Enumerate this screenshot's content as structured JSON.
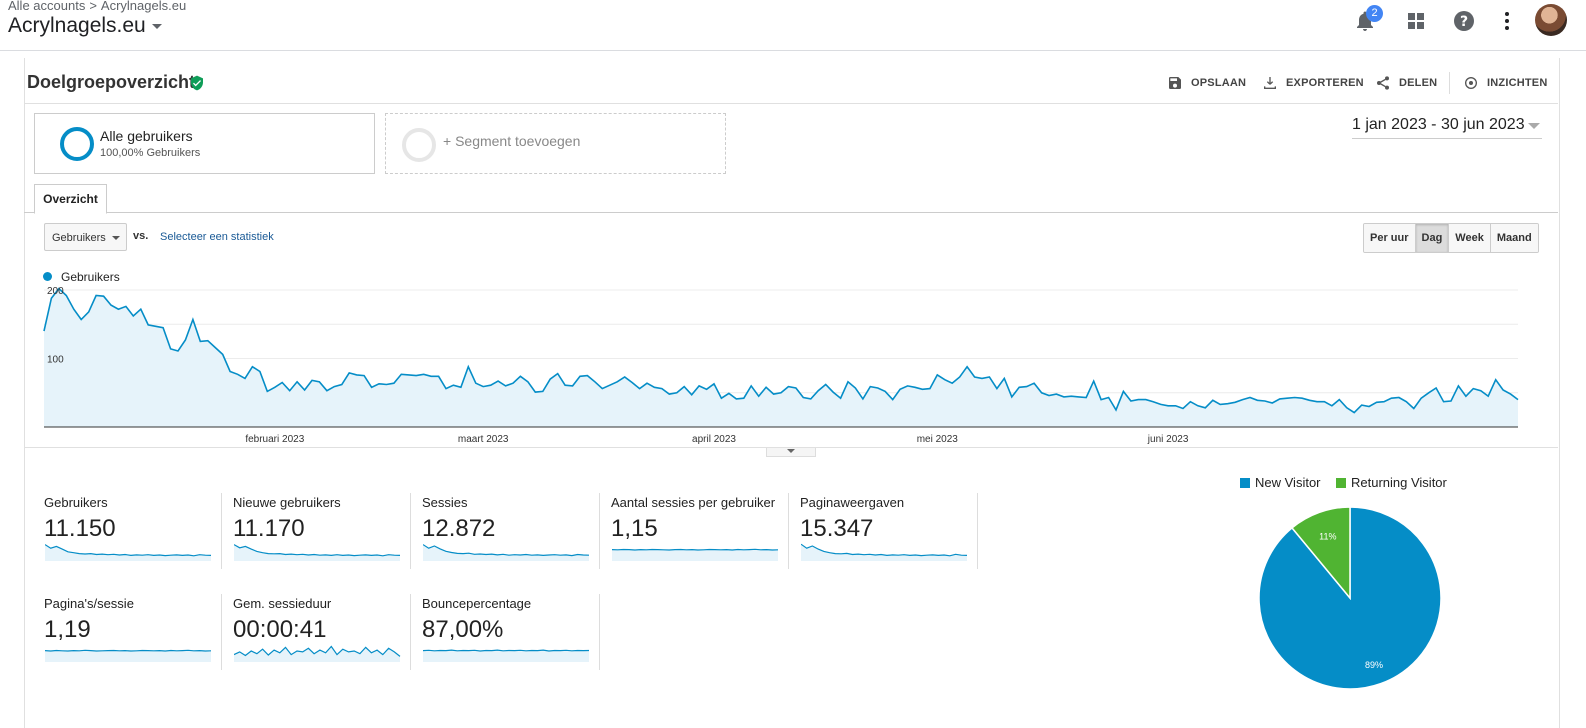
{
  "header": {
    "breadcrumb": [
      "Alle accounts",
      "Acrylnagels.eu"
    ],
    "account": "Acrylnagels.eu",
    "notifications": "2"
  },
  "page": {
    "title": "Doelgroepoverzicht",
    "actions": [
      "OPSLAAN",
      "EXPORTEREN",
      "DELEN",
      "INZICHTEN"
    ]
  },
  "segments": {
    "active": {
      "name": "Alle gebruikers",
      "sub": "100,00% Gebruikers"
    },
    "add": "+ Segment toevoegen"
  },
  "date_range": "1 jan 2023 - 30 jun 2023",
  "tabs": [
    "Overzicht"
  ],
  "controls": {
    "metric": "Gebruikers",
    "vs": "vs.",
    "select_stat": "Selecteer een statistiek",
    "granularity": [
      "Per uur",
      "Dag",
      "Week",
      "Maand"
    ],
    "active_granularity": "Dag"
  },
  "colors": {
    "series": "#058dc7",
    "series_fill": "#e6f3fa",
    "returning": "#50b432",
    "link": "#1a5a96"
  },
  "chart_data": [
    {
      "type": "area",
      "series": [
        {
          "name": "Gebruikers",
          "values": [
            140,
            188,
            202,
            192,
            172,
            157,
            168,
            192,
            191,
            178,
            172,
            176,
            162,
            172,
            149,
            147,
            145,
            114,
            111,
            127,
            157,
            125,
            126,
            116,
            106,
            81,
            77,
            71,
            88,
            81,
            52,
            58,
            65,
            53,
            66,
            54,
            68,
            66,
            53,
            59,
            62,
            79,
            76,
            75,
            58,
            63,
            62,
            64,
            77,
            76,
            75,
            77,
            74,
            74,
            56,
            61,
            58,
            88,
            64,
            59,
            61,
            67,
            60,
            64,
            74,
            66,
            51,
            52,
            70,
            78,
            61,
            60,
            74,
            75,
            66,
            56,
            61,
            66,
            73,
            65,
            56,
            64,
            58,
            56,
            48,
            50,
            59,
            47,
            60,
            55,
            63,
            42,
            49,
            41,
            42,
            60,
            45,
            58,
            48,
            50,
            59,
            57,
            43,
            41,
            53,
            62,
            51,
            42,
            66,
            57,
            41,
            59,
            57,
            52,
            40,
            55,
            60,
            58,
            55,
            56,
            76,
            69,
            64,
            73,
            88,
            73,
            71,
            73,
            56,
            71,
            44,
            58,
            59,
            64,
            50,
            46,
            48,
            44,
            45,
            44,
            43,
            67,
            40,
            43,
            25,
            52,
            38,
            40,
            40,
            37,
            33,
            31,
            31,
            27,
            37,
            31,
            28,
            39,
            33,
            34,
            36,
            40,
            43,
            39,
            38,
            35,
            41,
            42,
            43,
            42,
            39,
            37,
            37,
            31,
            40,
            28,
            21,
            32,
            30,
            36,
            37,
            42,
            43,
            37,
            27,
            42,
            50,
            57,
            37,
            38,
            60,
            45,
            56,
            53,
            45,
            69,
            54,
            48,
            40
          ]
        }
      ],
      "xlabels": [
        "februari 2023",
        "maart 2023",
        "april 2023",
        "mei 2023",
        "juni 2023"
      ],
      "ytick_labels": [
        "200",
        "100"
      ],
      "ylim": [
        0,
        200
      ]
    },
    {
      "type": "pie",
      "series": [
        {
          "name": "New Visitor",
          "value": 89,
          "label": "89%",
          "color": "#058dc7"
        },
        {
          "name": "Returning Visitor",
          "value": 11,
          "label": "11%",
          "color": "#50b432"
        }
      ]
    }
  ],
  "scorecards": [
    {
      "name": "Gebruikers",
      "value": "11.150",
      "spark": [
        80,
        60,
        70,
        55,
        40,
        35,
        30,
        28,
        30,
        25,
        27,
        24,
        26,
        22,
        25,
        20,
        23,
        21,
        24,
        20,
        22,
        19,
        21,
        23,
        20,
        22,
        18,
        24,
        21,
        20
      ]
    },
    {
      "name": "Nieuwe gebruikers",
      "value": "11.170",
      "spark": [
        80,
        62,
        70,
        55,
        42,
        35,
        30,
        29,
        30,
        25,
        27,
        24,
        26,
        22,
        25,
        21,
        23,
        20,
        24,
        20,
        22,
        19,
        21,
        23,
        20,
        22,
        18,
        24,
        21,
        20
      ]
    },
    {
      "name": "Sessies",
      "value": "12.872",
      "spark": [
        80,
        60,
        72,
        56,
        43,
        36,
        31,
        30,
        32,
        26,
        28,
        25,
        27,
        23,
        26,
        21,
        24,
        22,
        25,
        21,
        23,
        20,
        22,
        24,
        21,
        23,
        19,
        25,
        22,
        21
      ]
    },
    {
      "name": "Aantal sessies per gebruiker",
      "value": "1,15",
      "spark": [
        52,
        51,
        53,
        52,
        50,
        52,
        51,
        53,
        52,
        51,
        50,
        52,
        53,
        51,
        52,
        50,
        51,
        53,
        52,
        51,
        52,
        50,
        53,
        51,
        52,
        54,
        51,
        52,
        50,
        51
      ]
    },
    {
      "name": "Paginaweergaven",
      "value": "15.347",
      "spark": [
        82,
        60,
        72,
        55,
        42,
        35,
        30,
        29,
        31,
        25,
        27,
        24,
        26,
        22,
        25,
        20,
        23,
        21,
        24,
        20,
        22,
        19,
        21,
        23,
        20,
        22,
        18,
        26,
        21,
        20
      ]
    },
    {
      "name": "Pagina's/sessie",
      "value": "1,19",
      "spark": [
        52,
        50,
        53,
        51,
        50,
        52,
        51,
        54,
        52,
        50,
        51,
        52,
        53,
        51,
        52,
        50,
        51,
        53,
        52,
        51,
        52,
        50,
        53,
        51,
        52,
        54,
        51,
        52,
        50,
        51
      ]
    },
    {
      "name": "Gem. sessieduur",
      "value": "00:00:41",
      "spark": [
        30,
        45,
        25,
        50,
        35,
        60,
        28,
        55,
        40,
        70,
        30,
        50,
        45,
        65,
        35,
        55,
        40,
        75,
        30,
        60,
        45,
        50,
        35,
        70,
        40,
        55,
        30,
        65,
        45,
        20
      ]
    },
    {
      "name": "Bouncepercentage",
      "value": "87,00%",
      "spark": [
        52,
        54,
        51,
        53,
        52,
        55,
        51,
        53,
        52,
        54,
        50,
        53,
        52,
        55,
        51,
        53,
        52,
        54,
        51,
        53,
        52,
        55,
        50,
        53,
        52,
        54,
        51,
        53,
        52,
        53
      ]
    }
  ]
}
